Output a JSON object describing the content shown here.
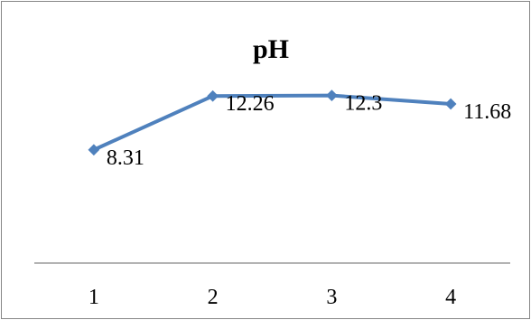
{
  "chart_data": {
    "type": "line",
    "title": "pH",
    "xlabel": "",
    "ylabel": "",
    "categories": [
      "1",
      "2",
      "3",
      "4"
    ],
    "series": [
      {
        "values": [
          8.31,
          12.26,
          12.3,
          11.68
        ],
        "labels": [
          "8.31",
          "12.26",
          "12.3",
          "11.68"
        ]
      }
    ],
    "ylim": [
      0,
      14
    ],
    "grid": false,
    "legend": "none",
    "line_color": "#4f81bd",
    "axis_color": "#868686",
    "border_color": "#868686"
  }
}
